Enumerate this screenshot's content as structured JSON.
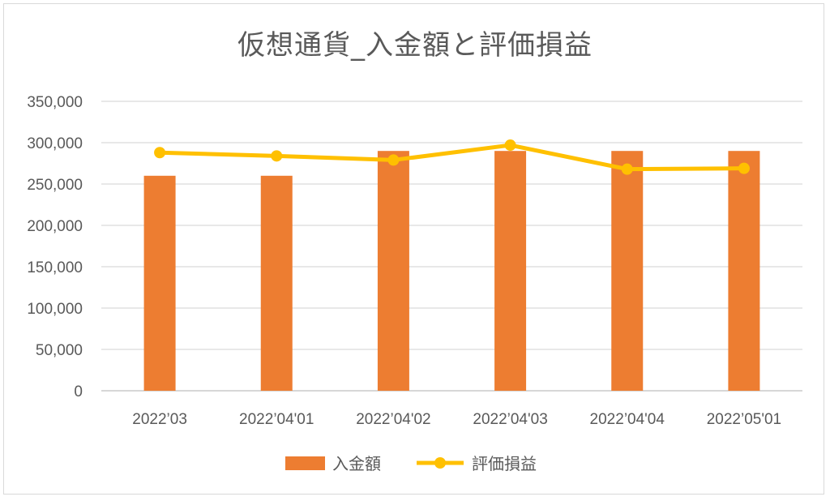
{
  "chart_data": {
    "type": "bar",
    "title": "仮想通貨_入金額と評価損益",
    "categories": [
      "2022’03",
      "2022’04'01",
      "2022’04'02",
      "2022’04'03",
      "2022’04'04",
      "2022’05'01"
    ],
    "series": [
      {
        "name": "入金額",
        "kind": "bar",
        "color": "#ED7D31",
        "values": [
          260000,
          260000,
          290000,
          290000,
          290000,
          290000
        ]
      },
      {
        "name": "評価損益",
        "kind": "line",
        "color": "#FFC000",
        "values": [
          288000,
          284000,
          279000,
          297000,
          268000,
          269000
        ]
      }
    ],
    "ylim": [
      0,
      350000
    ],
    "yticks": [
      "0",
      "50,000",
      "100,000",
      "150,000",
      "200,000",
      "250,000",
      "300,000",
      "350,000"
    ],
    "grid": true,
    "legend": "bottom"
  }
}
